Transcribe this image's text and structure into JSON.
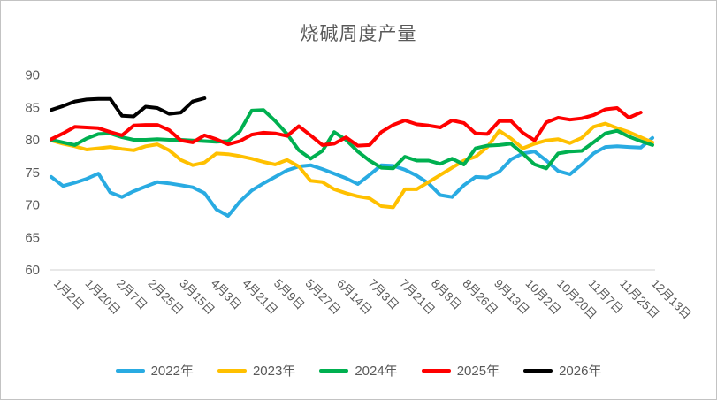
{
  "chart_data": {
    "type": "line",
    "title": "烧碱周度产量",
    "x_labels": [
      "1月2日",
      "1月20日",
      "2月7日",
      "2月25日",
      "3月15日",
      "4月3日",
      "4月21日",
      "5月9日",
      "5月27日",
      "6月14日",
      "7月3日",
      "7月21日",
      "8月8日",
      "8月26日",
      "9月13日",
      "10月2日",
      "10月20日",
      "11月7日",
      "11月25日",
      "12月13日"
    ],
    "y_ticks": [
      60,
      65,
      70,
      75,
      80,
      85,
      90
    ],
    "ylim": [
      60,
      90
    ],
    "grid": false,
    "legend_position": "bottom",
    "series": [
      {
        "name": "2022年",
        "color": "#29ABE2",
        "values": [
          74.3,
          72.9,
          73.4,
          74.0,
          74.8,
          71.9,
          71.2,
          72.1,
          72.8,
          73.5,
          73.3,
          73.0,
          72.7,
          71.8,
          69.3,
          68.3,
          70.5,
          72.2,
          73.3,
          74.3,
          75.3,
          75.9,
          76.1,
          75.5,
          74.8,
          74.1,
          73.2,
          74.6,
          76.1,
          76.0,
          75.4,
          74.5,
          73.3,
          71.5,
          71.2,
          73.0,
          74.3,
          74.2,
          75.1,
          77.0,
          77.9,
          78.2,
          76.8,
          75.2,
          74.7,
          76.2,
          77.9,
          78.9,
          79.0,
          78.9,
          78.8,
          80.3
        ]
      },
      {
        "name": "2023年",
        "color": "#FFC000",
        "values": [
          79.9,
          79.4,
          79.0,
          78.5,
          78.7,
          78.9,
          78.6,
          78.4,
          79.0,
          79.3,
          78.4,
          76.9,
          76.1,
          76.5,
          77.9,
          77.8,
          77.5,
          77.1,
          76.6,
          76.2,
          76.9,
          75.9,
          73.7,
          73.5,
          72.4,
          71.8,
          71.3,
          71.0,
          69.8,
          69.6,
          72.4,
          72.4,
          73.5,
          74.6,
          75.7,
          76.8,
          77.4,
          78.9,
          81.4,
          80.2,
          78.7,
          79.4,
          79.9,
          80.1,
          79.5,
          80.3,
          82.0,
          82.5,
          81.8,
          81.2,
          80.4,
          79.6
        ]
      },
      {
        "name": "2024年",
        "color": "#00B050",
        "values": [
          80.0,
          79.6,
          79.2,
          80.2,
          80.9,
          81.0,
          80.4,
          80.0,
          80.0,
          80.1,
          80.0,
          80.0,
          79.9,
          79.8,
          79.7,
          79.8,
          81.3,
          84.5,
          84.6,
          82.9,
          80.9,
          78.4,
          77.1,
          78.3,
          81.2,
          80.0,
          78.2,
          76.8,
          75.7,
          75.6,
          77.4,
          76.8,
          76.8,
          76.3,
          77.1,
          76.2,
          78.7,
          79.1,
          79.2,
          79.4,
          77.9,
          76.2,
          75.6,
          77.9,
          78.2,
          78.3,
          79.6,
          81.0,
          81.4,
          80.5,
          79.8,
          79.2
        ]
      },
      {
        "name": "2025年",
        "color": "#FF0000",
        "values": [
          80.1,
          81.0,
          82.0,
          81.9,
          81.8,
          81.2,
          80.7,
          82.2,
          82.3,
          82.3,
          81.5,
          79.9,
          79.6,
          80.7,
          80.1,
          79.3,
          79.8,
          80.8,
          81.1,
          81.0,
          80.6,
          82.1,
          80.7,
          79.2,
          79.4,
          80.4,
          79.1,
          79.2,
          81.2,
          82.3,
          83.0,
          82.4,
          82.2,
          81.9,
          83.0,
          82.6,
          81.0,
          80.9,
          82.9,
          82.9,
          81.1,
          79.9,
          82.7,
          83.4,
          83.1,
          83.3,
          83.8,
          84.7,
          84.9,
          83.4,
          84.2
        ]
      },
      {
        "name": "2026年",
        "color": "#000000",
        "values": [
          84.6,
          85.2,
          85.9,
          86.2,
          86.3,
          86.3,
          83.7,
          83.6,
          85.1,
          84.9,
          84.0,
          84.2,
          85.9,
          86.4
        ]
      }
    ],
    "max_points": 52
  },
  "colors": {
    "title_text": "#595959",
    "axis_text": "#595959",
    "axis_line": "#D9D9D9",
    "legend_text": "#595959",
    "background": "#FFFFFF"
  }
}
